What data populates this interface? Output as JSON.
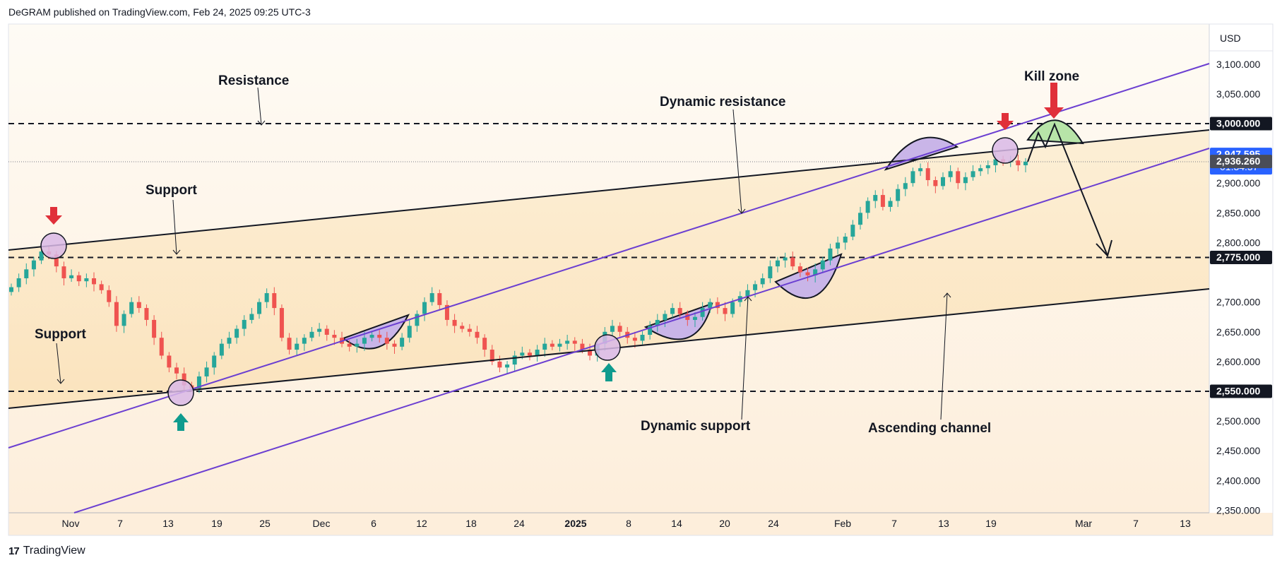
{
  "header": {
    "published_line": "DeGRAM published on TradingView.com, Feb 24, 2025 09:25 UTC-3"
  },
  "footer": {
    "brand_mark": "17",
    "brand_name": "TradingView"
  },
  "colors": {
    "up_candle": "#26a69a",
    "down_candle": "#ef5350",
    "channel_fill_top": "#fdf8ef",
    "channel_fill_mid": "#fdeccc",
    "purple_line": "#6b3fd1",
    "arc_fill": "#c9b5e8",
    "kill_zone_fill": "#b7e4a8",
    "price_badge": "#2962ff",
    "red_arrow": "#e0303a",
    "green_arrow": "#0f9b8e"
  },
  "chart_data": {
    "type": "candlestick",
    "title": "",
    "currency_label": "USD",
    "x_tick_labels": [
      "Nov",
      "7",
      "13",
      "19",
      "25",
      "Dec",
      "6",
      "12",
      "18",
      "24",
      "2025",
      "8",
      "14",
      "20",
      "24",
      "Feb",
      "7",
      "13",
      "19",
      "Mar",
      "7",
      "13"
    ],
    "y_tick_labels": [
      "3,100.000",
      "3,050.000",
      "2,900.000",
      "2,850.000",
      "2,800.000",
      "2,700.000",
      "2,650.000",
      "2,600.000",
      "2,500.000",
      "2,450.000",
      "2,400.000",
      "2,350.000"
    ],
    "ylim": [
      2325,
      3160
    ],
    "price_badges": [
      {
        "label": "3,000.000",
        "value": 3000,
        "style": "black"
      },
      {
        "label": "2,947.595",
        "value": 2947.595,
        "style": "blue",
        "countdown": "01:34:57"
      },
      {
        "label": "2,936.260",
        "value": 2936.26,
        "style": "gray"
      },
      {
        "label": "2,775.000",
        "value": 2775,
        "style": "black"
      },
      {
        "label": "2,550.000",
        "value": 2550,
        "style": "black"
      }
    ],
    "horizontal_levels": [
      3000,
      2775,
      2550
    ],
    "annotations": [
      "Resistance",
      "Support",
      "Support",
      "Dynamic resistance",
      "Dynamic support",
      "Ascending channel",
      "Kill zone"
    ],
    "close_series_approx": [
      2725,
      2740,
      2755,
      2770,
      2785,
      2780,
      2760,
      2740,
      2745,
      2735,
      2740,
      2730,
      2720,
      2700,
      2660,
      2680,
      2700,
      2690,
      2670,
      2640,
      2610,
      2590,
      2580,
      2560,
      2555,
      2575,
      2590,
      2610,
      2630,
      2640,
      2655,
      2670,
      2680,
      2700,
      2715,
      2690,
      2640,
      2620,
      2630,
      2640,
      2650,
      2655,
      2645,
      2640,
      2630,
      2625,
      2630,
      2640,
      2645,
      2640,
      2630,
      2625,
      2640,
      2660,
      2680,
      2700,
      2715,
      2695,
      2670,
      2660,
      2655,
      2650,
      2640,
      2620,
      2600,
      2590,
      2595,
      2610,
      2615,
      2610,
      2620,
      2630,
      2625,
      2630,
      2635,
      2630,
      2620,
      2610,
      2630,
      2650,
      2660,
      2650,
      2640,
      2635,
      2645,
      2660,
      2670,
      2680,
      2690,
      2680,
      2670,
      2675,
      2690,
      2700,
      2690,
      2680,
      2700,
      2710,
      2720,
      2730,
      2740,
      2760,
      2770,
      2775,
      2760,
      2750,
      2745,
      2755,
      2770,
      2790,
      2800,
      2810,
      2830,
      2850,
      2870,
      2880,
      2860,
      2870,
      2890,
      2900,
      2920,
      2925,
      2905,
      2895,
      2910,
      2920,
      2900,
      2910,
      2920,
      2925,
      2930,
      2940,
      2935,
      2938,
      2930,
      2936
    ]
  }
}
